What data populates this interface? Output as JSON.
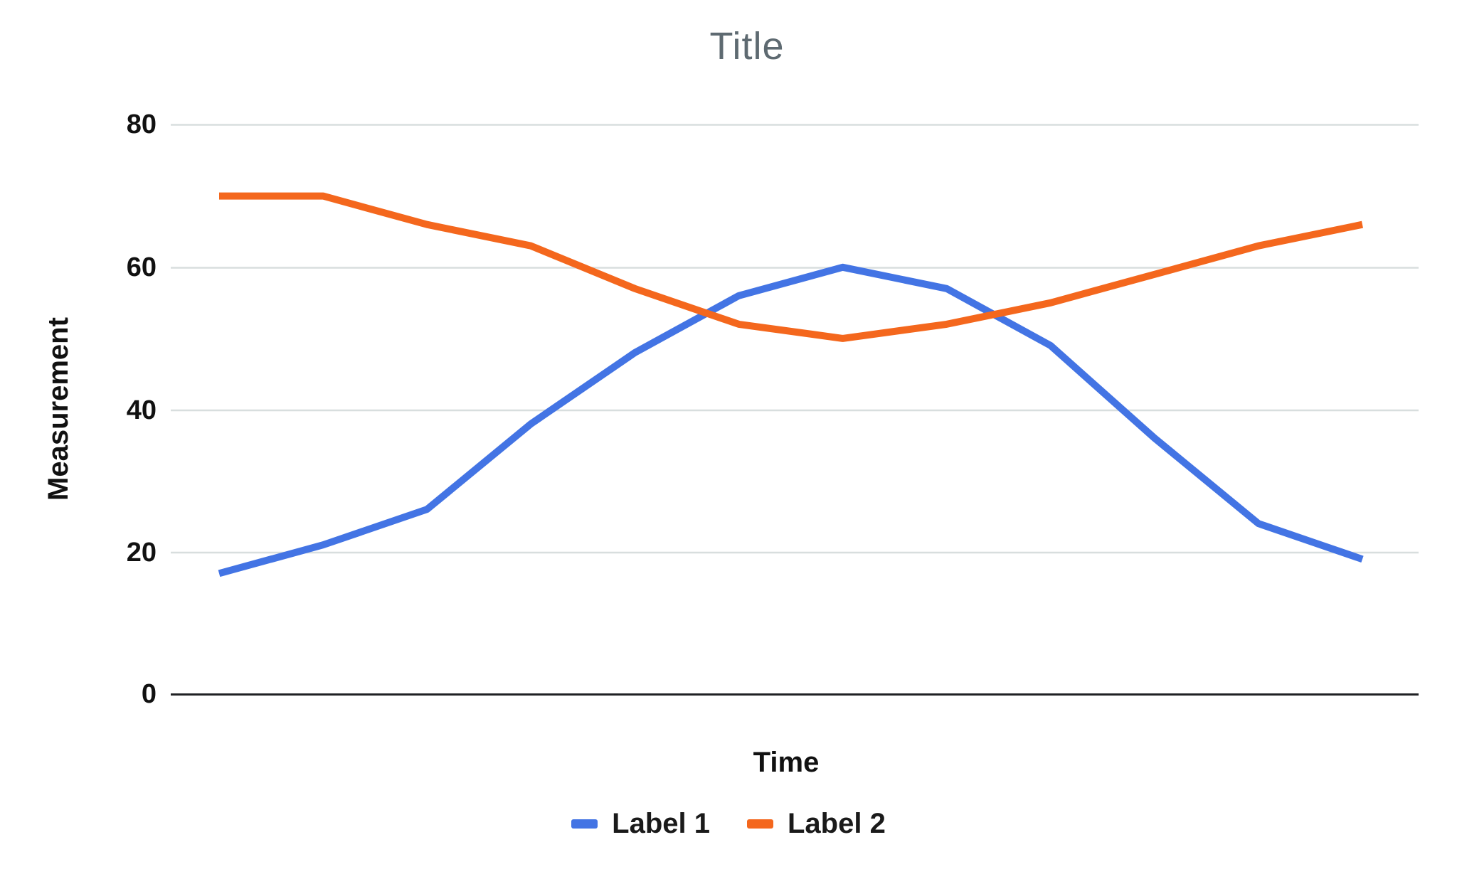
{
  "title": "Title",
  "y_axis": {
    "title": "Measurement",
    "ticks_top_to_bottom": [
      "80",
      "60",
      "40",
      "20",
      "0"
    ]
  },
  "x_axis": {
    "title": "Time"
  },
  "legend": {
    "items": [
      {
        "label": "Label 1"
      },
      {
        "label": "Label 2"
      }
    ]
  },
  "colors": {
    "series1_blue": "#4374E4",
    "series2_orange": "#F4671D",
    "title_gray": "#5E6A71",
    "gridline": "#D8DEDE",
    "axis_line": "#202124",
    "text": "#111111"
  },
  "chart_data": {
    "type": "line",
    "x": [
      1,
      2,
      3,
      4,
      5,
      6,
      7,
      8,
      9,
      10,
      11,
      12
    ],
    "x_tick_labels_visible": false,
    "series": [
      {
        "name": "Label 1",
        "color": "#4374E4",
        "values": [
          17,
          21,
          26,
          38,
          48,
          56,
          60,
          57,
          49,
          36,
          24,
          19
        ]
      },
      {
        "name": "Label 2",
        "color": "#F4671D",
        "values": [
          70,
          70,
          66,
          63,
          57,
          52,
          50,
          52,
          55,
          59,
          63,
          66
        ]
      }
    ],
    "title": "Title",
    "xlabel": "Time",
    "ylabel": "Measurement",
    "ylim": [
      0,
      80
    ],
    "y_ticks": [
      0,
      20,
      40,
      60,
      80
    ],
    "grid": "horizontal-only",
    "legend_position": "bottom-center"
  }
}
